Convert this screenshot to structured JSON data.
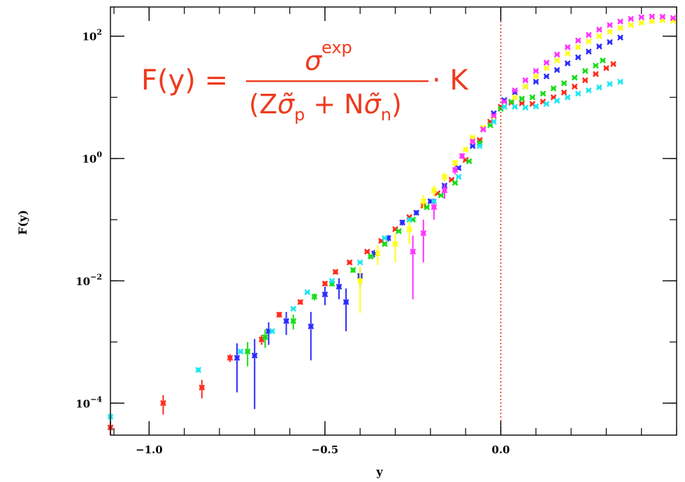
{
  "chart_data": {
    "type": "scatter",
    "title": "",
    "xlabel": "y",
    "ylabel": "F(y)",
    "xlim": [
      -1.11,
      0.5
    ],
    "ylim": [
      3e-05,
      300
    ],
    "yscale": "log",
    "xticks": [
      {
        "value": -1.0,
        "label": "−1.0"
      },
      {
        "value": -0.5,
        "label": "−0.5"
      },
      {
        "value": 0.0,
        "label": "0.0"
      }
    ],
    "yticks": [
      {
        "value": 0.0001,
        "base": "10",
        "exp": "−4"
      },
      {
        "value": 0.01,
        "base": "10",
        "exp": "−2"
      },
      {
        "value": 1,
        "base": "10",
        "exp": "0"
      },
      {
        "value": 100,
        "base": "10",
        "exp": "2"
      }
    ],
    "reference_line": {
      "x": 0.0,
      "color": "#e0301e",
      "style": "dotted"
    },
    "annotation": {
      "lhs": "F(y) =",
      "numerator": "σ",
      "numerator_sup": "exp",
      "denominator_parts": [
        "(Z",
        "σ̃",
        "p",
        " + N",
        "σ̃",
        "n",
        ")"
      ],
      "rhs": "· K",
      "color": "#ee3b1f"
    },
    "series": [
      {
        "color": "#ff2a1a",
        "points": [
          [
            -1.11,
            4e-05,
            1.5e-05
          ],
          [
            -0.96,
            0.0001,
            3.5e-05
          ],
          [
            -0.85,
            0.00018,
            6e-05
          ],
          [
            -0.77,
            0.00055,
            8e-05
          ],
          [
            -0.68,
            0.0011,
            0.0002
          ],
          [
            -0.63,
            0.0028,
            0.0003
          ],
          [
            -0.57,
            0.0045,
            0.0004
          ],
          [
            -0.5,
            0.009,
            0.0008
          ],
          [
            -0.47,
            0.014,
            0.0012
          ],
          [
            -0.43,
            0.02,
            0.0015
          ],
          [
            -0.38,
            0.03,
            0.002
          ],
          [
            -0.34,
            0.045,
            0.003
          ],
          [
            -0.3,
            0.07,
            0.004
          ],
          [
            -0.26,
            0.11,
            0.006
          ],
          [
            -0.22,
            0.17,
            0.008
          ],
          [
            -0.18,
            0.27,
            0.012
          ],
          [
            -0.14,
            0.45,
            0.02
          ],
          [
            -0.1,
            0.95,
            0.04
          ],
          [
            -0.06,
            2.0,
            0.08
          ],
          [
            -0.03,
            4.0,
            0.15
          ],
          [
            0.0,
            7.0,
            0.25
          ],
          [
            0.03,
            8.2,
            0.3
          ],
          [
            0.06,
            8.0,
            0.3
          ],
          [
            0.09,
            7.8,
            0.3
          ],
          [
            0.12,
            8.5,
            0.3
          ],
          [
            0.15,
            10.0,
            0.35
          ],
          [
            0.18,
            12.0,
            0.4
          ],
          [
            0.21,
            15.0,
            0.5
          ],
          [
            0.24,
            19.0,
            0.6
          ],
          [
            0.27,
            24.0,
            0.7
          ],
          [
            0.3,
            30.0,
            0.8
          ],
          [
            0.32,
            35.0,
            0.9
          ]
        ]
      },
      {
        "color": "#2b2bff",
        "points": [
          [
            -0.75,
            0.00055,
            0.0004
          ],
          [
            -0.7,
            0.0006,
            0.00052
          ],
          [
            -0.66,
            0.0015,
            0.0006
          ],
          [
            -0.61,
            0.0022,
            0.0009
          ],
          [
            -0.54,
            0.0018,
            0.0013
          ],
          [
            -0.5,
            0.006,
            0.002
          ],
          [
            -0.46,
            0.008,
            0.003
          ],
          [
            -0.44,
            0.0045,
            0.003
          ],
          [
            -0.4,
            0.012,
            0.004
          ],
          [
            -0.36,
            0.028,
            0.004
          ],
          [
            -0.32,
            0.05,
            0.006
          ],
          [
            -0.28,
            0.09,
            0.01
          ],
          [
            -0.24,
            0.13,
            0.012
          ],
          [
            -0.2,
            0.2,
            0.018
          ],
          [
            -0.16,
            0.36,
            0.03
          ],
          [
            -0.12,
            0.7,
            0.05
          ],
          [
            -0.08,
            1.6,
            0.08
          ],
          [
            -0.05,
            3.0,
            0.12
          ],
          [
            -0.02,
            5.5,
            0.2
          ],
          [
            0.01,
            9.0,
            0.3
          ],
          [
            0.04,
            12.0,
            0.4
          ],
          [
            0.07,
            15.0,
            0.5
          ],
          [
            0.1,
            18.0,
            0.5
          ],
          [
            0.13,
            22.0,
            0.6
          ],
          [
            0.16,
            28.0,
            0.7
          ],
          [
            0.19,
            36.0,
            0.8
          ],
          [
            0.22,
            45.0,
            1.0
          ],
          [
            0.25,
            56.0,
            1.2
          ],
          [
            0.28,
            68.0,
            1.4
          ],
          [
            0.31,
            80.0,
            1.6
          ],
          [
            0.34,
            95.0,
            2.0
          ]
        ]
      },
      {
        "color": "#16dd16",
        "points": [
          [
            -0.72,
            0.0007,
            0.0003
          ],
          [
            -0.67,
            0.0012,
            0.0004
          ],
          [
            -0.59,
            0.0022,
            0.0006
          ],
          [
            -0.53,
            0.0055,
            0.0007
          ],
          [
            -0.48,
            0.009,
            0.0009
          ],
          [
            -0.42,
            0.015,
            0.0014
          ],
          [
            -0.37,
            0.025,
            0.002
          ],
          [
            -0.33,
            0.04,
            0.003
          ],
          [
            -0.29,
            0.065,
            0.004
          ],
          [
            -0.25,
            0.1,
            0.006
          ],
          [
            -0.21,
            0.16,
            0.008
          ],
          [
            -0.17,
            0.25,
            0.012
          ],
          [
            -0.13,
            0.4,
            0.02
          ],
          [
            -0.09,
            0.9,
            0.04
          ],
          [
            -0.06,
            1.8,
            0.08
          ],
          [
            -0.03,
            3.5,
            0.15
          ],
          [
            0.0,
            6.5,
            0.25
          ],
          [
            0.03,
            8.5,
            0.3
          ],
          [
            0.06,
            9.5,
            0.3
          ],
          [
            0.09,
            10.0,
            0.35
          ],
          [
            0.12,
            11.5,
            0.4
          ],
          [
            0.15,
            14.0,
            0.45
          ],
          [
            0.18,
            17.0,
            0.5
          ],
          [
            0.21,
            21.0,
            0.6
          ],
          [
            0.24,
            27.0,
            0.8
          ],
          [
            0.27,
            33.0,
            0.9
          ],
          [
            0.29,
            40.0,
            1.0
          ]
        ]
      },
      {
        "color": "#ffff14",
        "points": [
          [
            -0.4,
            0.01,
            0.007
          ],
          [
            -0.35,
            0.028,
            0.01
          ],
          [
            -0.3,
            0.04,
            0.02
          ],
          [
            -0.26,
            0.07,
            0.03
          ],
          [
            -0.22,
            0.2,
            0.05
          ],
          [
            -0.19,
            0.3,
            0.06
          ],
          [
            -0.16,
            0.5,
            0.08
          ],
          [
            -0.13,
            0.85,
            0.1
          ],
          [
            -0.1,
            1.4,
            0.12
          ],
          [
            -0.08,
            2.2,
            0.15
          ],
          [
            -0.05,
            3.2,
            0.18
          ],
          [
            -0.02,
            4.8,
            0.2
          ],
          [
            0.01,
            7.0,
            0.25
          ],
          [
            0.04,
            10.0,
            0.35
          ],
          [
            0.07,
            15.0,
            0.5
          ],
          [
            0.1,
            22.0,
            0.7
          ],
          [
            0.13,
            30.0,
            0.9
          ],
          [
            0.16,
            40.0,
            1.1
          ],
          [
            0.19,
            52.0,
            1.4
          ],
          [
            0.22,
            66.0,
            1.8
          ],
          [
            0.25,
            82.0,
            2.2
          ],
          [
            0.28,
            100.0,
            2.5
          ],
          [
            0.31,
            118.0,
            3.0
          ],
          [
            0.34,
            136.0,
            3.5
          ],
          [
            0.37,
            152.0,
            4.0
          ],
          [
            0.4,
            166.0,
            4.5
          ],
          [
            0.43,
            176.0,
            5.0
          ],
          [
            0.46,
            182.0,
            5.0
          ],
          [
            0.49,
            178.0,
            5.0
          ]
        ]
      },
      {
        "color": "#ff33ff",
        "points": [
          [
            -0.25,
            0.03,
            0.025
          ],
          [
            -0.22,
            0.06,
            0.04
          ],
          [
            -0.19,
            0.16,
            0.06
          ],
          [
            -0.16,
            0.3,
            0.08
          ],
          [
            -0.13,
            0.65,
            0.1
          ],
          [
            -0.11,
            1.1,
            0.12
          ],
          [
            -0.08,
            1.9,
            0.15
          ],
          [
            -0.05,
            3.0,
            0.18
          ],
          [
            -0.02,
            5.0,
            0.2
          ],
          [
            0.01,
            8.5,
            0.3
          ],
          [
            0.04,
            13.0,
            0.4
          ],
          [
            0.07,
            19.0,
            0.6
          ],
          [
            0.1,
            27.0,
            0.8
          ],
          [
            0.13,
            37.0,
            1.0
          ],
          [
            0.16,
            50.0,
            1.3
          ],
          [
            0.19,
            66.0,
            1.7
          ],
          [
            0.22,
            85.0,
            2.1
          ],
          [
            0.25,
            105.0,
            2.6
          ],
          [
            0.28,
            128.0,
            3.1
          ],
          [
            0.31,
            152.0,
            3.6
          ],
          [
            0.34,
            174.0,
            4.0
          ],
          [
            0.37,
            192.0,
            4.4
          ],
          [
            0.4,
            204.0,
            4.8
          ],
          [
            0.43,
            210.0,
            5.0
          ],
          [
            0.46,
            208.0,
            5.0
          ],
          [
            0.49,
            198.0,
            5.0
          ]
        ]
      },
      {
        "color": "#1ee6f0",
        "points": [
          [
            -1.11,
            6e-05,
            1e-05
          ],
          [
            -0.86,
            0.00035,
            3e-05
          ],
          [
            -0.74,
            0.0007,
            5e-05
          ],
          [
            -0.65,
            0.0015,
            0.0001
          ],
          [
            -0.59,
            0.0035,
            0.0002
          ],
          [
            -0.55,
            0.0065,
            0.0003
          ],
          [
            -0.48,
            0.01,
            0.0004
          ],
          [
            -0.4,
            0.02,
            0.0008
          ],
          [
            -0.33,
            0.05,
            0.0015
          ],
          [
            -0.26,
            0.1,
            0.003
          ],
          [
            -0.19,
            0.2,
            0.006
          ],
          [
            -0.12,
            0.5,
            0.015
          ],
          [
            -0.06,
            1.6,
            0.05
          ],
          [
            -0.02,
            4.0,
            0.12
          ],
          [
            0.01,
            7.0,
            0.2
          ],
          [
            0.04,
            7.0,
            0.2
          ],
          [
            0.07,
            6.8,
            0.2
          ],
          [
            0.1,
            7.1,
            0.2
          ],
          [
            0.13,
            7.8,
            0.25
          ],
          [
            0.16,
            8.8,
            0.3
          ],
          [
            0.19,
            10.0,
            0.3
          ],
          [
            0.22,
            11.5,
            0.35
          ],
          [
            0.25,
            13.0,
            0.4
          ],
          [
            0.28,
            14.5,
            0.45
          ],
          [
            0.31,
            16.5,
            0.5
          ],
          [
            0.34,
            18.0,
            0.55
          ]
        ]
      }
    ]
  }
}
